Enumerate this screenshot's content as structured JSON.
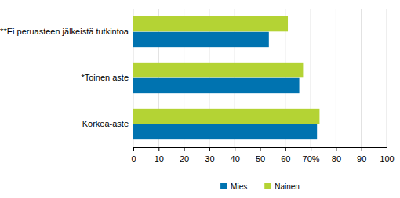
{
  "chart_data": {
    "type": "bar",
    "orientation": "horizontal",
    "categories": [
      "**Ei peruasteen jälkeistä tutkintoa",
      "*Toinen aste",
      "Korkea-aste"
    ],
    "series": [
      {
        "name": "Mies",
        "color": "#0073b0",
        "values": [
          53.5,
          65.5,
          72.5
        ]
      },
      {
        "name": "Nainen",
        "color": "#b4d334",
        "values": [
          61,
          67,
          73.5
        ]
      }
    ],
    "xlim": [
      0,
      100
    ],
    "xticks": [
      0,
      10,
      20,
      30,
      40,
      50,
      60,
      {
        "value": 70,
        "label": "70%"
      },
      80,
      90,
      100
    ],
    "grid": true,
    "legend": "bottom"
  }
}
